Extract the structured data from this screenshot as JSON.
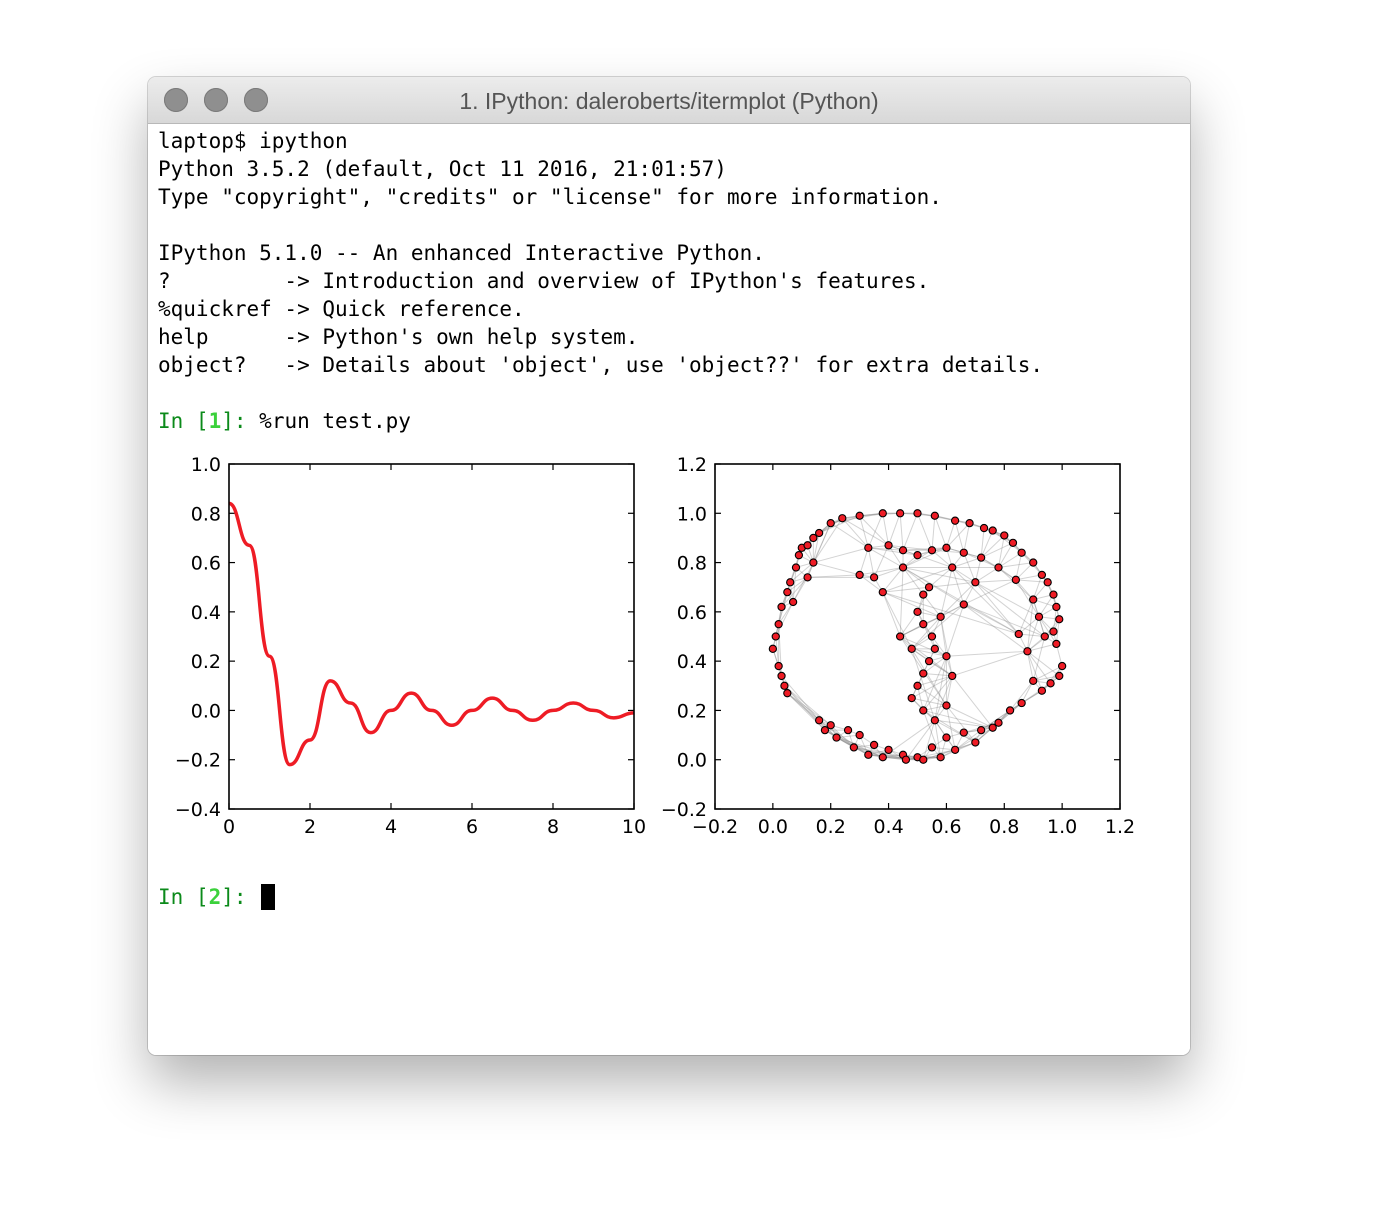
{
  "window": {
    "title": "1. IPython: daleroberts/itermplot (Python)",
    "traffic_color": "#8f8f8f"
  },
  "terminal": {
    "lines": [
      "laptop$ ipython",
      "Python 3.5.2 (default, Oct 11 2016, 21:01:57)",
      "Type \"copyright\", \"credits\" or \"license\" for more information.",
      "",
      "IPython 5.1.0 -- An enhanced Interactive Python.",
      "?         -> Introduction and overview of IPython's features.",
      "%quickref -> Quick reference.",
      "help      -> Python's own help system.",
      "object?   -> Details about 'object', use 'object??' for extra details."
    ],
    "prompt1": {
      "prefix": "In [",
      "number": "1",
      "suffix": "]: ",
      "command": "%run test.py"
    },
    "prompt2": {
      "prefix": "In [",
      "number": "2",
      "suffix": "]: "
    },
    "prompt_color": "#0b8a1a",
    "prompt_number_color": "#3bd13b"
  },
  "chart_data": [
    {
      "type": "line",
      "title": "",
      "xlabel": "",
      "ylabel": "",
      "xlim": [
        0,
        10
      ],
      "ylim": [
        -0.4,
        1.0
      ],
      "xticks": [
        "0",
        "2",
        "4",
        "6",
        "8",
        "10"
      ],
      "yticks": [
        "1.0",
        "0.8",
        "0.6",
        "0.4",
        "0.2",
        "0.0",
        "−0.2",
        "−0.4"
      ],
      "grid": false,
      "color": "#ee1c25",
      "series": [
        {
          "x": [
            0,
            0.5,
            1,
            1.5,
            2,
            2.5,
            3,
            3.5,
            4,
            4.5,
            5,
            5.5,
            6,
            6.5,
            7,
            7.5,
            8,
            8.5,
            9,
            9.5,
            10
          ],
          "values": [
            0.84,
            0.67,
            0.22,
            -0.22,
            -0.12,
            0.12,
            0.03,
            -0.09,
            0.0,
            0.07,
            0.0,
            -0.06,
            0.0,
            0.05,
            0.0,
            -0.04,
            0.0,
            0.03,
            0.0,
            -0.03,
            -0.01
          ]
        }
      ]
    },
    {
      "type": "scatter",
      "title": "",
      "xlabel": "",
      "ylabel": "",
      "xlim": [
        -0.2,
        1.2
      ],
      "ylim": [
        -0.2,
        1.2
      ],
      "xticks": [
        "−0.2",
        "0.0",
        "0.2",
        "0.4",
        "0.6",
        "0.8",
        "1.0",
        "1.2"
      ],
      "yticks": [
        "1.2",
        "1.0",
        "0.8",
        "0.6",
        "0.4",
        "0.2",
        "0.0",
        "−0.2"
      ],
      "grid": false,
      "marker_color": "#ee1c25",
      "edge_color": "#808080",
      "points": [
        [
          0.0,
          0.45
        ],
        [
          0.01,
          0.5
        ],
        [
          0.02,
          0.38
        ],
        [
          0.03,
          0.34
        ],
        [
          0.04,
          0.3
        ],
        [
          0.05,
          0.27
        ],
        [
          0.02,
          0.55
        ],
        [
          0.03,
          0.62
        ],
        [
          0.05,
          0.68
        ],
        [
          0.07,
          0.64
        ],
        [
          0.06,
          0.72
        ],
        [
          0.08,
          0.78
        ],
        [
          0.09,
          0.83
        ],
        [
          0.1,
          0.86
        ],
        [
          0.12,
          0.87
        ],
        [
          0.14,
          0.9
        ],
        [
          0.16,
          0.92
        ],
        [
          0.12,
          0.74
        ],
        [
          0.14,
          0.8
        ],
        [
          0.2,
          0.96
        ],
        [
          0.24,
          0.98
        ],
        [
          0.3,
          0.99
        ],
        [
          0.38,
          1.0
        ],
        [
          0.44,
          1.0
        ],
        [
          0.5,
          1.0
        ],
        [
          0.56,
          0.99
        ],
        [
          0.63,
          0.97
        ],
        [
          0.68,
          0.96
        ],
        [
          0.73,
          0.94
        ],
        [
          0.76,
          0.93
        ],
        [
          0.8,
          0.91
        ],
        [
          0.83,
          0.88
        ],
        [
          0.86,
          0.84
        ],
        [
          0.9,
          0.8
        ],
        [
          0.93,
          0.75
        ],
        [
          0.95,
          0.72
        ],
        [
          0.97,
          0.67
        ],
        [
          0.98,
          0.62
        ],
        [
          0.99,
          0.57
        ],
        [
          0.97,
          0.52
        ],
        [
          0.98,
          0.47
        ],
        [
          1.0,
          0.38
        ],
        [
          0.99,
          0.34
        ],
        [
          0.96,
          0.31
        ],
        [
          0.93,
          0.28
        ],
        [
          0.9,
          0.32
        ],
        [
          0.86,
          0.23
        ],
        [
          0.82,
          0.2
        ],
        [
          0.78,
          0.15
        ],
        [
          0.72,
          0.12
        ],
        [
          0.66,
          0.11
        ],
        [
          0.6,
          0.09
        ],
        [
          0.55,
          0.05
        ],
        [
          0.5,
          0.01
        ],
        [
          0.45,
          0.02
        ],
        [
          0.4,
          0.04
        ],
        [
          0.35,
          0.06
        ],
        [
          0.3,
          0.1
        ],
        [
          0.26,
          0.12
        ],
        [
          0.2,
          0.14
        ],
        [
          0.16,
          0.16
        ],
        [
          0.18,
          0.12
        ],
        [
          0.22,
          0.09
        ],
        [
          0.28,
          0.05
        ],
        [
          0.33,
          0.02
        ],
        [
          0.38,
          0.01
        ],
        [
          0.46,
          0.0
        ],
        [
          0.52,
          0.0
        ],
        [
          0.58,
          0.01
        ],
        [
          0.63,
          0.04
        ],
        [
          0.7,
          0.07
        ],
        [
          0.76,
          0.13
        ],
        [
          0.3,
          0.75
        ],
        [
          0.35,
          0.74
        ],
        [
          0.33,
          0.86
        ],
        [
          0.4,
          0.87
        ],
        [
          0.45,
          0.85
        ],
        [
          0.5,
          0.83
        ],
        [
          0.55,
          0.85
        ],
        [
          0.6,
          0.86
        ],
        [
          0.66,
          0.84
        ],
        [
          0.72,
          0.82
        ],
        [
          0.78,
          0.78
        ],
        [
          0.84,
          0.73
        ],
        [
          0.9,
          0.65
        ],
        [
          0.92,
          0.58
        ],
        [
          0.94,
          0.5
        ],
        [
          0.88,
          0.44
        ],
        [
          0.54,
          0.7
        ],
        [
          0.52,
          0.67
        ],
        [
          0.5,
          0.6
        ],
        [
          0.52,
          0.55
        ],
        [
          0.55,
          0.5
        ],
        [
          0.56,
          0.45
        ],
        [
          0.54,
          0.4
        ],
        [
          0.52,
          0.35
        ],
        [
          0.5,
          0.3
        ],
        [
          0.48,
          0.25
        ],
        [
          0.52,
          0.2
        ],
        [
          0.56,
          0.16
        ],
        [
          0.6,
          0.22
        ],
        [
          0.62,
          0.34
        ],
        [
          0.6,
          0.42
        ],
        [
          0.48,
          0.45
        ],
        [
          0.44,
          0.5
        ],
        [
          0.58,
          0.58
        ],
        [
          0.66,
          0.63
        ],
        [
          0.7,
          0.72
        ],
        [
          0.38,
          0.68
        ],
        [
          0.45,
          0.78
        ],
        [
          0.62,
          0.78
        ],
        [
          0.85,
          0.51
        ]
      ]
    }
  ]
}
